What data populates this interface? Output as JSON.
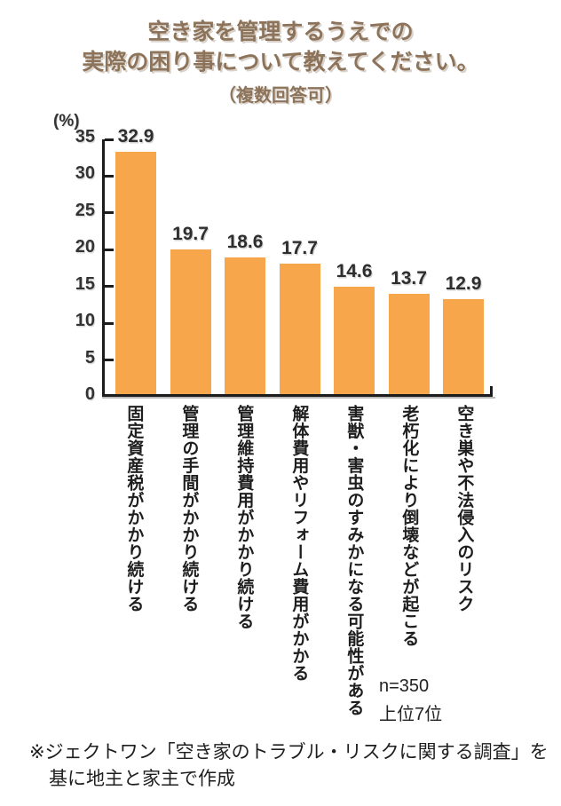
{
  "title": {
    "line1": "空き家を管理するうえでの",
    "line2": "実際の困り事について教えてください。",
    "line3": "（複数回答可）"
  },
  "chart_data": {
    "type": "bar",
    "categories": [
      "固定資産税がかかり続ける",
      "管理の手間がかかり続ける",
      "管理維持費用がかかり続ける",
      "解体費用やリフォーム費用がかかる",
      "害獣・害虫のすみかになる可能性がある",
      "老朽化により倒壊などが起こる",
      "空き巣や不法侵入のリスク"
    ],
    "values": [
      32.9,
      19.7,
      18.6,
      17.7,
      14.6,
      13.7,
      12.9
    ],
    "title": "空き家を管理するうえでの実際の困り事について教えてください。（複数回答可）",
    "xlabel": "",
    "ylabel": "(%)",
    "ylim": [
      0,
      35
    ],
    "yticks": [
      0,
      5,
      10,
      15,
      20,
      25,
      30,
      35
    ],
    "grid": "off",
    "legend": "none",
    "bar_color": "#F8A64C"
  },
  "annotations": {
    "sample_size": "n=350",
    "rank_note": "上位7位"
  },
  "source": {
    "line1": "※ジェクトワン「空き家のトラブル・リスクに関する調査」を",
    "line2": "基に地主と家主で作成"
  },
  "colors": {
    "bar": "#F8A64C",
    "title_text": "#8C735A",
    "axis": "#1c1c1c",
    "text_dark": "#2e2e2e"
  }
}
